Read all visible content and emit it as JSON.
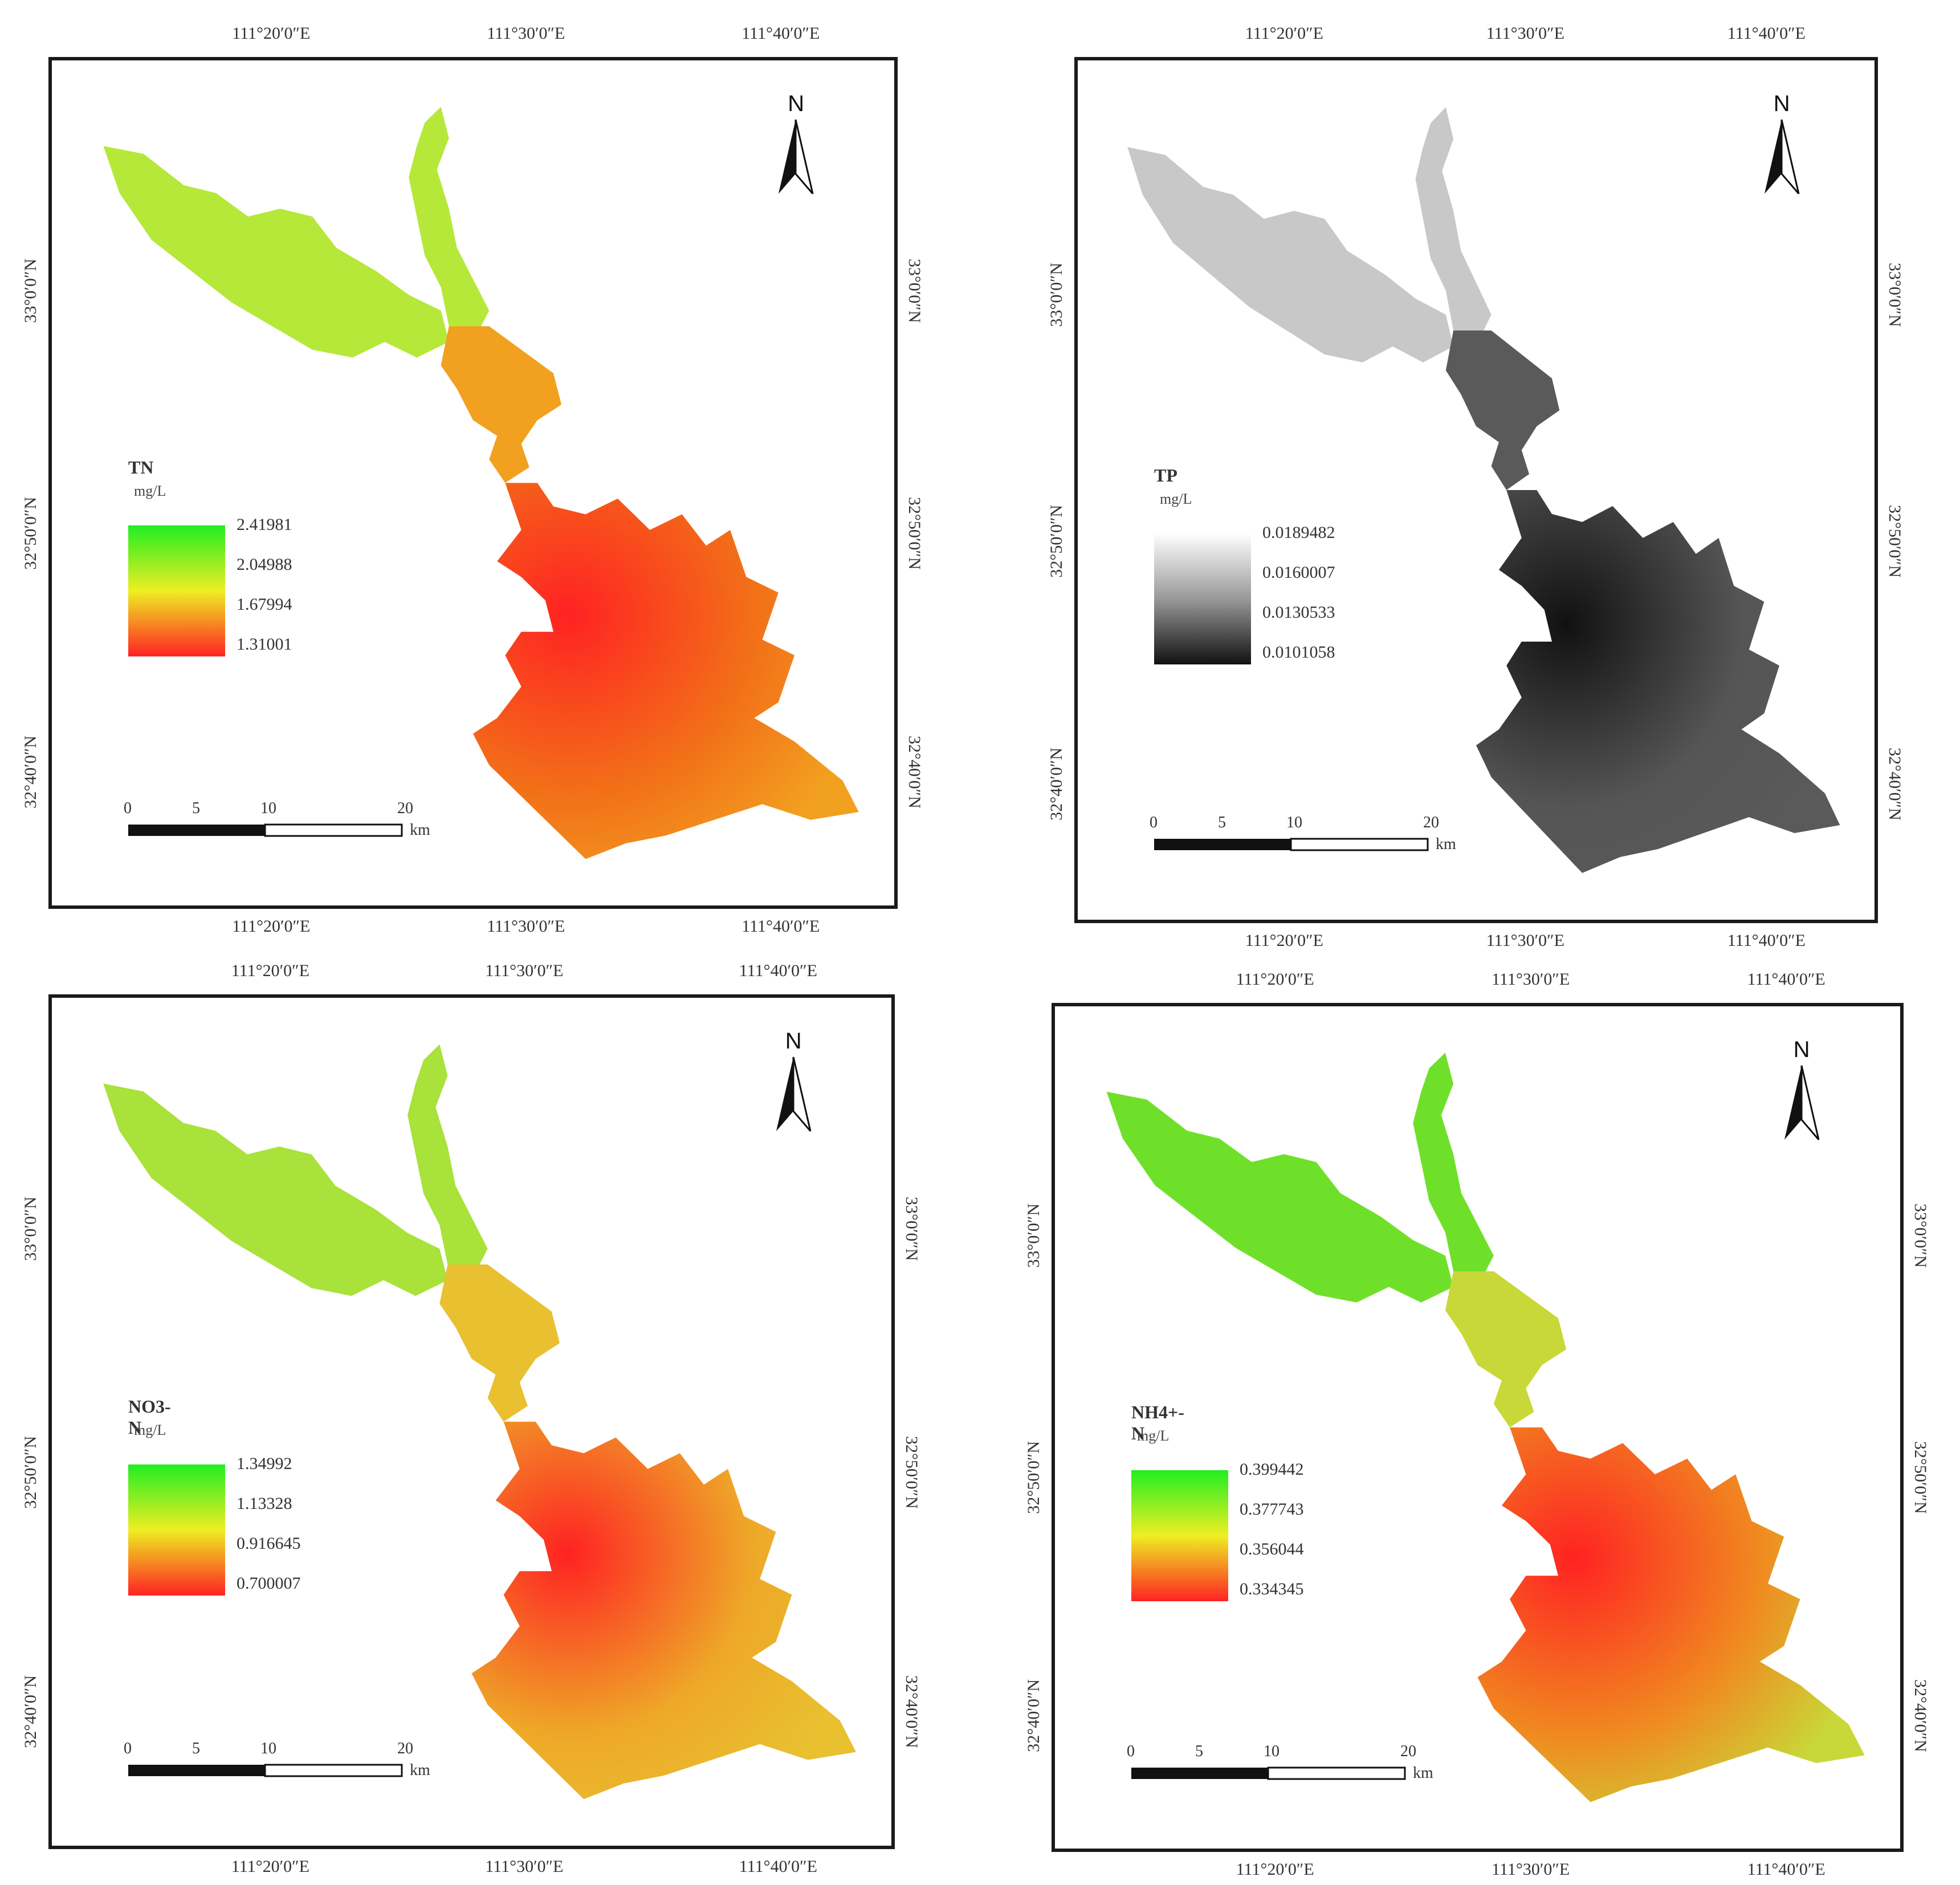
{
  "panels": [
    {
      "id": "tn",
      "legend_title": "TN",
      "unit": "mg/L",
      "legend_values": [
        "2.41981",
        "2.04988",
        "1.67994",
        "1.31001"
      ],
      "ramp": [
        "#22ee22",
        "#eeee22",
        "#ff2222"
      ],
      "colors": {
        "upper": "#b6e83a",
        "middle": "#f2a020",
        "lower": "#f27018"
      },
      "top_labels": [
        "111°20′0″E",
        "111°30′0″E",
        "111°40′0″E"
      ],
      "bottom_labels": [
        "111°20′0″E",
        "111°30′0″E",
        "111°40′0″E"
      ],
      "left_labels": [
        "33°0′0″N",
        "32°50′0″N",
        "32°40′0″N"
      ],
      "right_labels": [
        "33°0′0″N",
        "32°50′0″N",
        "32°40′0″N"
      ],
      "scale": [
        "0",
        "5",
        "10",
        "20"
      ],
      "scale_unit": "km",
      "north": "N"
    },
    {
      "id": "tp",
      "legend_title": "TP",
      "unit": "mg/L",
      "legend_values": [
        "0.0189482",
        "0.0160007",
        "0.0130533",
        "0.0101058"
      ],
      "ramp": [
        "#ffffff",
        "#999999",
        "#111111"
      ],
      "colors": {
        "upper": "#c8c8c8",
        "middle": "#5a5a5a",
        "lower": "#555555"
      },
      "top_labels": [
        "111°20′0″E",
        "111°30′0″E",
        "111°40′0″E"
      ],
      "bottom_labels": [
        "111°20′0″E",
        "111°30′0″E",
        "111°40′0″E"
      ],
      "left_labels": [
        "33°0′0″N",
        "32°50′0″N",
        "32°40′0″N"
      ],
      "right_labels": [
        "33°0′0″N",
        "32°50′0″N",
        "32°40′0″N"
      ],
      "scale": [
        "0",
        "5",
        "10",
        "20"
      ],
      "scale_unit": "km",
      "north": "N"
    },
    {
      "id": "no3",
      "legend_title": "NO3-N",
      "unit": "mg/L",
      "legend_values": [
        "1.34992",
        "1.13328",
        "0.916645",
        "0.700007"
      ],
      "ramp": [
        "#22ee22",
        "#eeee22",
        "#ff2222"
      ],
      "colors": {
        "upper": "#a8e23a",
        "middle": "#e8c030",
        "lower": "#eea828"
      },
      "top_labels": [
        "111°20′0″E",
        "111°30′0″E",
        "111°40′0″E"
      ],
      "bottom_labels": [
        "111°20′0″E",
        "111°30′0″E",
        "111°40′0″E"
      ],
      "left_labels": [
        "33°0′0″N",
        "32°50′0″N",
        "32°40′0″N"
      ],
      "right_labels": [
        "33°0′0″N",
        "32°50′0″N",
        "32°40′0″N"
      ],
      "scale": [
        "0",
        "5",
        "10",
        "20"
      ],
      "scale_unit": "km",
      "north": "N"
    },
    {
      "id": "nh4",
      "legend_title": "NH4+-N",
      "unit": "mg/L",
      "legend_values": [
        "0.399442",
        "0.377743",
        "0.356044",
        "0.334345"
      ],
      "ramp": [
        "#22ee22",
        "#eeee22",
        "#ff2222"
      ],
      "colors": {
        "upper": "#6fe02a",
        "middle": "#c8d838",
        "lower": "#f08a20"
      },
      "top_labels": [
        "111°20′0″E",
        "111°30′0″E",
        "111°40′0″E"
      ],
      "bottom_labels": [
        "111°20′0″E",
        "111°30′0″E",
        "111°40′0″E"
      ],
      "left_labels": [
        "33°0′0″N",
        "32°50′0″N",
        "32°40′0″N"
      ],
      "right_labels": [
        "33°0′0″N",
        "32°50′0″N",
        "32°40′0″N"
      ],
      "scale": [
        "0",
        "5",
        "10",
        "20"
      ],
      "scale_unit": "km",
      "north": "N"
    }
  ]
}
